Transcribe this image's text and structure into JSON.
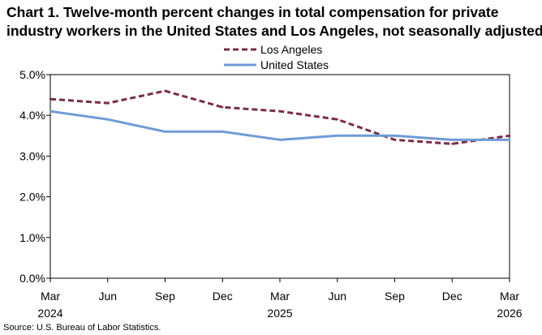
{
  "title_line1": "Chart 1. Twelve-month percent changes in total compensation for private",
  "title_line2": "industry workers in the United States and Los Angeles, not seasonally adjusted",
  "source": "Source: U.S. Bureau of Labor Statistics.",
  "colors": {
    "los_angeles": "#7b2c47",
    "united_states": "#6f9bd8",
    "axis": "#000000",
    "plot_border": "#000000"
  },
  "chart_data": {
    "type": "line",
    "categories": [
      "Mar\n2024",
      "Jun",
      "Sep",
      "Dec",
      "Mar\n2025",
      "Jun",
      "Sep",
      "Dec",
      "Mar\n2026"
    ],
    "ylim": [
      0,
      5
    ],
    "y_ticks": [
      "0.0%",
      "1.0%",
      "2.0%",
      "3.0%",
      "4.0%",
      "5.0%"
    ],
    "grid": false,
    "legend_position": "top-center",
    "series": [
      {
        "name": "Los Angeles",
        "style": "dashed",
        "values": [
          4.4,
          4.3,
          4.6,
          4.2,
          4.1,
          3.9,
          3.4,
          3.3,
          3.5
        ]
      },
      {
        "name": "United States",
        "style": "solid",
        "values": [
          4.1,
          3.9,
          3.6,
          3.6,
          3.4,
          3.5,
          3.5,
          3.4,
          3.4
        ]
      }
    ]
  }
}
